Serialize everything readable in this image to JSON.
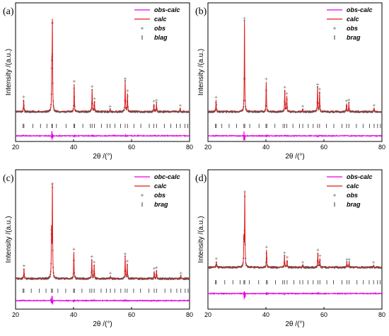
{
  "colors": {
    "obs_calc": "#e100e1",
    "calc": "#e01b1b",
    "obs": "#555555",
    "brag": "#333333",
    "frame": "#000000"
  },
  "chart_data": [
    {
      "type": "line",
      "panel_label": "(a)",
      "xlabel": "2θ /(°)",
      "ylabel": "Intensity /(a.u.)",
      "xlim": [
        20,
        80
      ],
      "xticks": [
        20,
        40,
        60,
        80
      ],
      "grid": false,
      "legend_position": "top-right",
      "legend": [
        "obs-calc",
        "calc",
        "obs",
        "blag"
      ],
      "peaks": [
        {
          "x": 22.8,
          "y": 0.14
        },
        {
          "x": 32.5,
          "y": 0.47
        },
        {
          "x": 32.7,
          "y": 1.0
        },
        {
          "x": 40.2,
          "y": 0.32
        },
        {
          "x": 46.4,
          "y": 0.26
        },
        {
          "x": 47.2,
          "y": 0.12
        },
        {
          "x": 52.6,
          "y": 0.03
        },
        {
          "x": 57.8,
          "y": 0.35
        },
        {
          "x": 58.6,
          "y": 0.21
        },
        {
          "x": 67.7,
          "y": 0.09
        },
        {
          "x": 68.6,
          "y": 0.1
        },
        {
          "x": 76.8,
          "y": 0.04
        }
      ],
      "bragg_positions": [
        22.6,
        22.9,
        26.0,
        28.6,
        30.8,
        32.5,
        32.7,
        34.1,
        37.4,
        40.1,
        40.4,
        43.2,
        45.8,
        46.4,
        47.2,
        49.6,
        51.6,
        52.6,
        54.3,
        56.2,
        57.8,
        58.6,
        60.8,
        63.2,
        66.1,
        67.7,
        68.6,
        71.3,
        73.5,
        75.5,
        76.8,
        78.4,
        79.4
      ]
    },
    {
      "type": "line",
      "panel_label": "(b)",
      "xlabel": "2θ /(°)",
      "ylabel": "Intensity /(a.u.)",
      "xlim": [
        20,
        80
      ],
      "xticks": [
        20,
        40,
        60,
        80
      ],
      "grid": false,
      "legend_position": "top-right",
      "legend": [
        "obs-calc",
        "calc",
        "obs",
        "brag"
      ],
      "peaks": [
        {
          "x": 22.8,
          "y": 0.13
        },
        {
          "x": 32.6,
          "y": 1.0
        },
        {
          "x": 40.1,
          "y": 0.33
        },
        {
          "x": 46.5,
          "y": 0.24
        },
        {
          "x": 47.2,
          "y": 0.17
        },
        {
          "x": 52.7,
          "y": 0.03
        },
        {
          "x": 57.8,
          "y": 0.27
        },
        {
          "x": 58.5,
          "y": 0.22
        },
        {
          "x": 67.8,
          "y": 0.09
        },
        {
          "x": 68.6,
          "y": 0.1
        },
        {
          "x": 77.3,
          "y": 0.04
        }
      ],
      "bragg_positions": [
        22.6,
        22.9,
        24.8,
        27.3,
        29.9,
        32.4,
        32.7,
        34.4,
        37.6,
        40.0,
        40.3,
        43.1,
        45.9,
        46.5,
        47.2,
        49.3,
        51.6,
        52.7,
        54.6,
        56.3,
        57.8,
        58.5,
        60.9,
        63.4,
        66.2,
        67.8,
        68.6,
        71.2,
        73.5,
        75.7,
        77.3,
        78.5,
        79.5
      ]
    },
    {
      "type": "line",
      "panel_label": "(c)",
      "xlabel": "2θ /(°)",
      "ylabel": "Intensity /(a.u.)",
      "xlim": [
        20,
        80
      ],
      "xticks": [
        20,
        40,
        60,
        80
      ],
      "grid": false,
      "legend_position": "top-right",
      "legend": [
        "obc-calc",
        "calc",
        "obs",
        "brag"
      ],
      "peaks": [
        {
          "x": 22.9,
          "y": 0.11
        },
        {
          "x": 32.4,
          "y": 0.5
        },
        {
          "x": 32.7,
          "y": 1.0
        },
        {
          "x": 40.1,
          "y": 0.29
        },
        {
          "x": 46.3,
          "y": 0.21
        },
        {
          "x": 47.1,
          "y": 0.15
        },
        {
          "x": 52.7,
          "y": 0.03
        },
        {
          "x": 57.8,
          "y": 0.24
        },
        {
          "x": 58.5,
          "y": 0.16
        },
        {
          "x": 67.8,
          "y": 0.08
        },
        {
          "x": 68.6,
          "y": 0.09
        },
        {
          "x": 77.0,
          "y": 0.03
        }
      ],
      "bragg_positions": [
        22.6,
        22.9,
        25.4,
        28.2,
        30.5,
        32.4,
        32.7,
        34.6,
        37.3,
        40.0,
        40.3,
        42.9,
        45.6,
        46.3,
        47.1,
        49.5,
        51.3,
        52.7,
        54.2,
        56.3,
        57.8,
        58.5,
        60.7,
        63.1,
        66.0,
        67.8,
        68.6,
        71.5,
        73.6,
        75.6,
        77.0,
        78.5,
        79.5
      ]
    },
    {
      "type": "line",
      "panel_label": "(d)",
      "xlabel": "2θ /(°)",
      "ylabel": "Intensity /(a.u.)",
      "xlim": [
        20,
        80
      ],
      "xticks": [
        20,
        40,
        60,
        80
      ],
      "grid": false,
      "legend_position": "top-right",
      "legend": [
        "obs-calc",
        "calc",
        "obs",
        "brag"
      ],
      "peaks": [
        {
          "x": 22.9,
          "y": 0.08
        },
        {
          "x": 32.4,
          "y": 0.38
        },
        {
          "x": 32.7,
          "y": 1.0
        },
        {
          "x": 40.2,
          "y": 0.24
        },
        {
          "x": 46.4,
          "y": 0.16
        },
        {
          "x": 47.3,
          "y": 0.1
        },
        {
          "x": 52.7,
          "y": 0.03
        },
        {
          "x": 57.9,
          "y": 0.2
        },
        {
          "x": 58.6,
          "y": 0.12
        },
        {
          "x": 67.9,
          "y": 0.07
        },
        {
          "x": 68.7,
          "y": 0.07
        },
        {
          "x": 77.1,
          "y": 0.03
        }
      ],
      "bragg_positions": [
        22.6,
        22.9,
        25.8,
        28.6,
        31.1,
        32.4,
        32.7,
        34.3,
        37.5,
        40.1,
        40.5,
        43.3,
        45.8,
        46.4,
        47.3,
        49.6,
        51.7,
        52.7,
        54.5,
        56.3,
        57.9,
        58.6,
        61.0,
        63.3,
        66.2,
        67.9,
        68.7,
        71.4,
        73.6,
        75.6,
        77.1,
        78.5,
        79.4
      ]
    }
  ]
}
